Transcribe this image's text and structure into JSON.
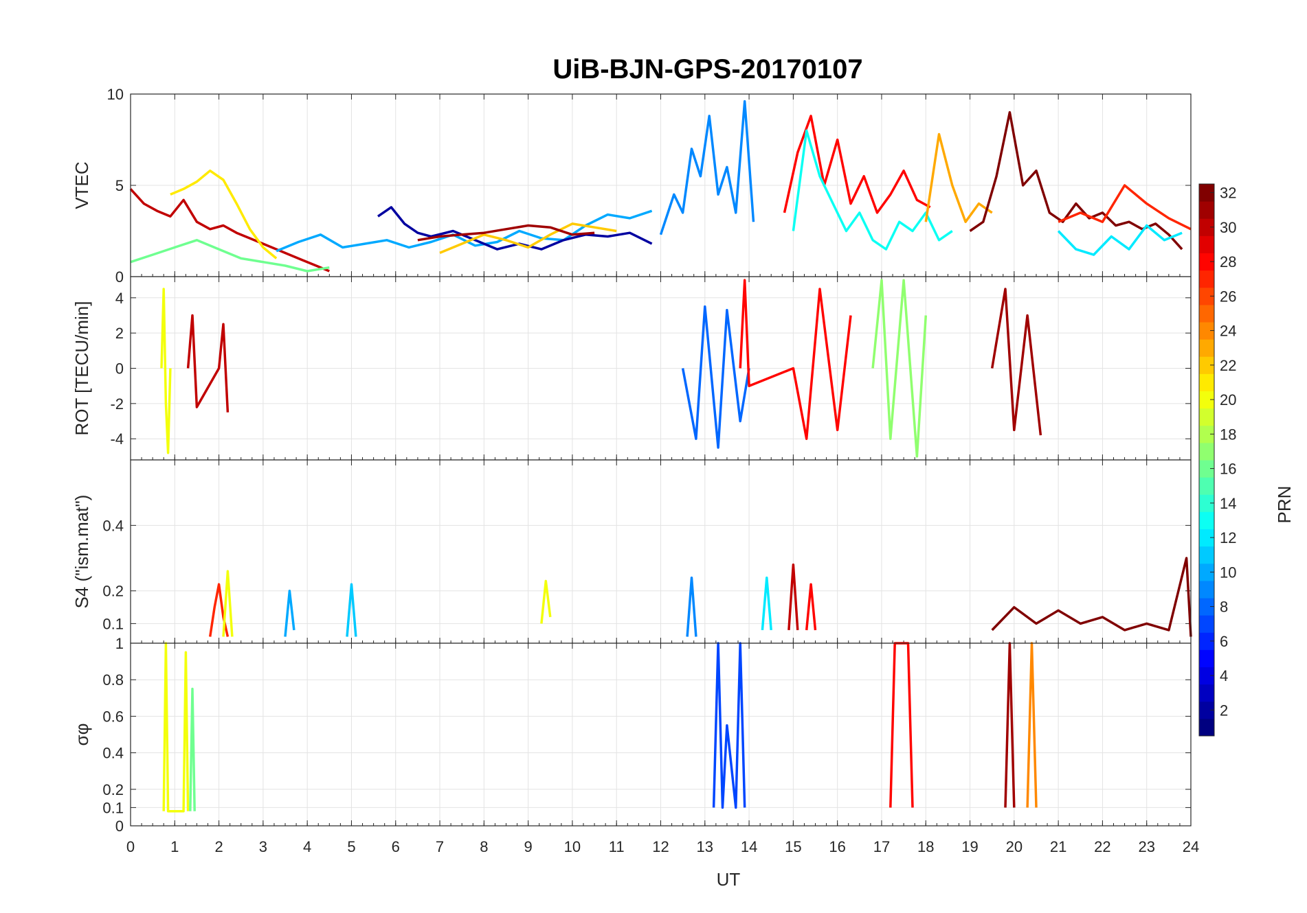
{
  "chart_data": {
    "type": "line",
    "title": "UiB-BJN-GPS-20170107",
    "xlabel": "UT",
    "xlim": [
      0,
      24
    ],
    "x_ticks": [
      "0",
      "1",
      "2",
      "3",
      "4",
      "5",
      "6",
      "7",
      "8",
      "9",
      "10",
      "11",
      "12",
      "13",
      "14",
      "15",
      "16",
      "17",
      "18",
      "19",
      "20",
      "21",
      "22",
      "23",
      "24"
    ],
    "grid": true,
    "colorbar": {
      "label": "PRN",
      "colormap": "jet",
      "levels": 32,
      "clim": [
        1,
        32
      ],
      "ticks": [
        "2",
        "4",
        "6",
        "8",
        "10",
        "12",
        "14",
        "16",
        "18",
        "20",
        "22",
        "24",
        "26",
        "28",
        "30",
        "32"
      ]
    },
    "panels": [
      {
        "id": "vtec",
        "ylabel": "VTEC",
        "ylim": [
          0,
          10
        ],
        "y_ticks": [
          "0",
          "5",
          "10"
        ],
        "series": [
          {
            "prn": 30,
            "x": [
              0,
              0.3,
              0.6,
              0.9,
              1.2,
              1.5,
              1.8,
              2.1,
              2.4,
              2.7,
              3.0,
              3.3,
              3.6,
              3.9,
              4.2,
              4.5
            ],
            "y": [
              4.8,
              4.0,
              3.6,
              3.3,
              4.2,
              3.0,
              2.6,
              2.8,
              2.4,
              2.1,
              1.8,
              1.5,
              1.2,
              0.9,
              0.6,
              0.3
            ]
          },
          {
            "prn": 21,
            "x": [
              0.9,
              1.2,
              1.5,
              1.8,
              2.1,
              2.4,
              2.7,
              3.0,
              3.3
            ],
            "y": [
              4.5,
              4.8,
              5.2,
              5.8,
              5.3,
              4.0,
              2.6,
              1.6,
              1.0
            ]
          },
          {
            "prn": 16,
            "x": [
              0,
              0.5,
              1.0,
              1.5,
              2.0,
              2.5,
              3.0,
              3.5,
              4.0,
              4.5
            ],
            "y": [
              0.8,
              1.2,
              1.6,
              2.0,
              1.5,
              1.0,
              0.8,
              0.6,
              0.3,
              0.5
            ]
          },
          {
            "prn": 10,
            "x": [
              3.3,
              3.8,
              4.3,
              4.8,
              5.3,
              5.8,
              6.3,
              6.8,
              7.3,
              7.8,
              8.3,
              8.8,
              9.3,
              9.8,
              10.3,
              10.8,
              11.3,
              11.8
            ],
            "y": [
              1.4,
              1.9,
              2.3,
              1.6,
              1.8,
              2.0,
              1.6,
              1.9,
              2.3,
              1.7,
              1.9,
              2.5,
              2.1,
              2.0,
              2.8,
              3.4,
              3.2,
              3.6
            ]
          },
          {
            "prn": 2,
            "x": [
              5.6,
              5.9,
              6.2,
              6.5,
              6.8,
              7.3,
              7.8,
              8.3,
              8.8,
              9.3,
              9.8,
              10.3,
              10.8,
              11.3,
              11.8
            ],
            "y": [
              3.3,
              3.8,
              2.9,
              2.4,
              2.2,
              2.5,
              2.0,
              1.5,
              1.8,
              1.5,
              2.0,
              2.3,
              2.2,
              2.4,
              1.8
            ]
          },
          {
            "prn": 22,
            "x": [
              7.0,
              7.5,
              8.0,
              8.5,
              9.0,
              9.5,
              10.0,
              10.5,
              11.0
            ],
            "y": [
              1.3,
              1.8,
              2.3,
              2.0,
              1.6,
              2.3,
              2.9,
              2.7,
              2.5
            ]
          },
          {
            "prn": 31,
            "x": [
              6.5,
              7.0,
              7.5,
              8.0,
              8.5,
              9.0,
              9.5,
              10.0,
              10.5
            ],
            "y": [
              2.0,
              2.2,
              2.3,
              2.4,
              2.6,
              2.8,
              2.7,
              2.3,
              2.4
            ]
          },
          {
            "prn": 9,
            "x": [
              12.0,
              12.3,
              12.5,
              12.7,
              12.9,
              13.1,
              13.3,
              13.5,
              13.7,
              13.9,
              14.1
            ],
            "y": [
              2.3,
              4.5,
              3.5,
              7.0,
              5.5,
              8.8,
              4.5,
              6.0,
              3.5,
              9.6,
              3.0
            ]
          },
          {
            "prn": 28,
            "x": [
              14.8,
              15.1,
              15.4,
              15.7,
              16.0,
              16.3,
              16.6,
              16.9,
              17.2,
              17.5,
              17.8,
              18.1
            ],
            "y": [
              3.5,
              6.8,
              8.8,
              5.0,
              7.5,
              4.0,
              5.5,
              3.5,
              4.5,
              5.8,
              4.2,
              3.8
            ]
          },
          {
            "prn": 13,
            "x": [
              15.0,
              15.3,
              15.6,
              15.9,
              16.2,
              16.5,
              16.8,
              17.1,
              17.4,
              17.7,
              18.0,
              18.3,
              18.6
            ],
            "y": [
              2.5,
              8.0,
              5.5,
              4.0,
              2.5,
              3.5,
              2.0,
              1.5,
              3.0,
              2.5,
              3.5,
              2.0,
              2.5
            ]
          },
          {
            "prn": 23,
            "x": [
              18.0,
              18.3,
              18.6,
              18.9,
              19.2,
              19.5
            ],
            "y": [
              3.0,
              7.8,
              5.0,
              3.0,
              4.0,
              3.5
            ]
          },
          {
            "prn": 32,
            "x": [
              19.0,
              19.3,
              19.6,
              19.9,
              20.2,
              20.5,
              20.8,
              21.1,
              21.4,
              21.7,
              22.0,
              22.3,
              22.6,
              22.9,
              23.2,
              23.5,
              23.8
            ],
            "y": [
              2.5,
              3.0,
              5.5,
              9.0,
              5.0,
              5.8,
              3.5,
              3.0,
              4.0,
              3.2,
              3.5,
              2.8,
              3.0,
              2.6,
              2.9,
              2.3,
              1.5
            ]
          },
          {
            "prn": 27,
            "x": [
              21.0,
              21.5,
              22.0,
              22.5,
              23.0,
              23.5,
              24.0
            ],
            "y": [
              3.0,
              3.5,
              3.0,
              5.0,
              4.0,
              3.2,
              2.6
            ]
          },
          {
            "prn": 12,
            "x": [
              21.0,
              21.4,
              21.8,
              22.2,
              22.6,
              23.0,
              23.4,
              23.8
            ],
            "y": [
              2.5,
              1.5,
              1.2,
              2.2,
              1.5,
              2.8,
              2.0,
              2.4
            ]
          }
        ]
      },
      {
        "id": "rot",
        "ylabel": "ROT [TECU/min]",
        "ylim": [
          -5.2,
          5.2
        ],
        "y_ticks": [
          "-4",
          "-2",
          "0",
          "2",
          "4"
        ],
        "series": [
          {
            "prn": 20,
            "x": [
              0.7,
              0.75,
              0.8,
              0.85,
              0.9
            ],
            "y": [
              0,
              4.5,
              -2.0,
              -4.8,
              0
            ]
          },
          {
            "prn": 30,
            "x": [
              1.3,
              1.4,
              1.5,
              2.0,
              2.1,
              2.2
            ],
            "y": [
              0,
              3.0,
              -2.2,
              0,
              2.5,
              -2.5
            ]
          },
          {
            "prn": 8,
            "x": [
              12.5,
              12.8,
              13.0,
              13.3,
              13.5,
              13.8,
              14.0
            ],
            "y": [
              0,
              -4.0,
              3.5,
              -4.5,
              3.3,
              -3.0,
              0
            ]
          },
          {
            "prn": 28,
            "x": [
              13.8,
              13.9,
              14.0,
              15.0,
              15.3,
              15.6,
              16.0,
              16.3
            ],
            "y": [
              0,
              5.0,
              -1.0,
              0,
              -4.0,
              4.5,
              -3.5,
              3.0
            ]
          },
          {
            "prn": 17,
            "x": [
              16.8,
              17.0,
              17.2,
              17.5,
              17.8,
              18.0
            ],
            "y": [
              0,
              5.0,
              -4.0,
              5.0,
              -5.0,
              3.0
            ]
          },
          {
            "prn": 31,
            "x": [
              19.5,
              19.8,
              20.0,
              20.3,
              20.6
            ],
            "y": [
              0,
              4.5,
              -3.5,
              3.0,
              -3.8
            ]
          }
        ]
      },
      {
        "id": "s4",
        "ylabel": "S4 (\"ism.mat\")",
        "ylim": [
          0.04,
          0.6
        ],
        "y_ticks": [
          "0.1",
          "0.2",
          "0.4"
        ],
        "series": [
          {
            "prn": 27,
            "x": [
              1.8,
              1.9,
              2.0,
              2.1,
              2.2
            ],
            "y": [
              0.06,
              0.15,
              0.22,
              0.12,
              0.06
            ]
          },
          {
            "prn": 20,
            "x": [
              2.1,
              2.2,
              2.3
            ],
            "y": [
              0.06,
              0.26,
              0.06
            ]
          },
          {
            "prn": 10,
            "x": [
              3.5,
              3.6,
              3.7
            ],
            "y": [
              0.06,
              0.2,
              0.08
            ]
          },
          {
            "prn": 11,
            "x": [
              4.9,
              5.0,
              5.1
            ],
            "y": [
              0.06,
              0.22,
              0.06
            ]
          },
          {
            "prn": 20,
            "x": [
              9.3,
              9.4,
              9.5
            ],
            "y": [
              0.1,
              0.23,
              0.12
            ]
          },
          {
            "prn": 9,
            "x": [
              12.6,
              12.7,
              12.8
            ],
            "y": [
              0.06,
              0.24,
              0.06
            ]
          },
          {
            "prn": 12,
            "x": [
              14.3,
              14.4,
              14.5
            ],
            "y": [
              0.08,
              0.24,
              0.08
            ]
          },
          {
            "prn": 30,
            "x": [
              14.9,
              15.0,
              15.1
            ],
            "y": [
              0.08,
              0.28,
              0.08
            ]
          },
          {
            "prn": 28,
            "x": [
              15.3,
              15.4,
              15.5
            ],
            "y": [
              0.08,
              0.22,
              0.08
            ]
          },
          {
            "prn": 32,
            "x": [
              19.5,
              20.0,
              20.5,
              21.0,
              21.5,
              22.0,
              22.5,
              23.0,
              23.5,
              23.9,
              24.0
            ],
            "y": [
              0.08,
              0.15,
              0.1,
              0.14,
              0.1,
              0.12,
              0.08,
              0.1,
              0.08,
              0.3,
              0.06
            ]
          }
        ]
      },
      {
        "id": "sigma_phi",
        "ylabel": "σφ",
        "ylim": [
          0,
          1
        ],
        "y_ticks": [
          "0",
          "0.1",
          "0.2",
          "0.4",
          "0.6",
          "0.8",
          "1"
        ],
        "series": [
          {
            "prn": 20,
            "x": [
              0.75,
              0.8,
              0.85,
              1.2,
              1.25,
              1.3
            ],
            "y": [
              0.08,
              1.0,
              0.08,
              0.08,
              0.95,
              0.08
            ]
          },
          {
            "prn": 16,
            "x": [
              1.35,
              1.4,
              1.45
            ],
            "y": [
              0.08,
              0.75,
              0.08
            ]
          },
          {
            "prn": 7,
            "x": [
              13.2,
              13.3,
              13.4,
              13.5,
              13.7,
              13.8,
              13.9
            ],
            "y": [
              0.1,
              1.0,
              0.1,
              0.55,
              0.1,
              1.0,
              0.1
            ]
          },
          {
            "prn": 28,
            "x": [
              17.2,
              17.3,
              17.4,
              17.5,
              17.6,
              17.7
            ],
            "y": [
              0.1,
              1.0,
              1.0,
              1.0,
              1.0,
              0.1
            ]
          },
          {
            "prn": 31,
            "x": [
              19.8,
              19.9,
              20.0
            ],
            "y": [
              0.1,
              1.0,
              0.1
            ]
          },
          {
            "prn": 24,
            "x": [
              20.3,
              20.4,
              20.5
            ],
            "y": [
              0.1,
              1.0,
              0.1
            ]
          }
        ]
      }
    ]
  }
}
